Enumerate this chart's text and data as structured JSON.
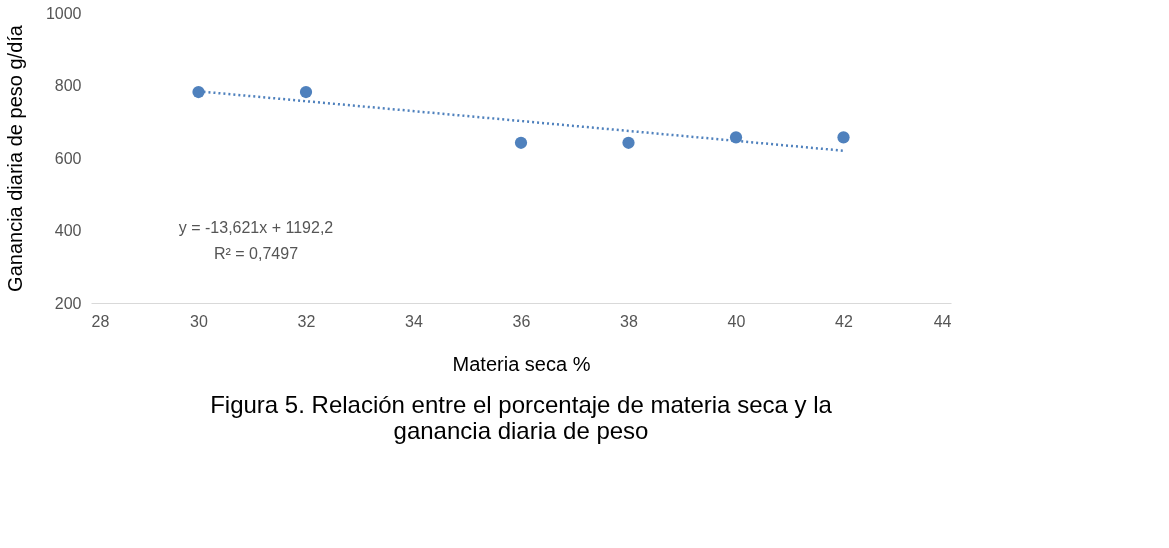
{
  "chart_data": {
    "type": "scatter",
    "title": "Figura 5. Relación entre el porcentaje de materia seca y la ganancia diaria de peso",
    "xlabel": "Materia seca %",
    "ylabel": "Ganancia diaria de peso g/día",
    "xlim": [
      28,
      44
    ],
    "xticks": [
      28,
      30,
      32,
      34,
      36,
      38,
      40,
      42,
      44
    ],
    "ylim": [
      200,
      1000
    ],
    "yticks": [
      200,
      400,
      600,
      800,
      1000
    ],
    "grid": false,
    "series": [
      {
        "color": "#4f81bd",
        "marker": "circle",
        "x": [
          30,
          32,
          36,
          38,
          40,
          42
        ],
        "values": [
          782,
          782,
          642,
          642,
          657,
          657
        ]
      },
      {
        "type": "line",
        "color": "#4f81bd",
        "marker": "none",
        "line_style": "dotted",
        "x": [
          30,
          42
        ],
        "values": [
          784,
          620
        ]
      }
    ],
    "annotations": [
      "y = -13,621x + 1192,2",
      "R² = 0,7497"
    ]
  }
}
